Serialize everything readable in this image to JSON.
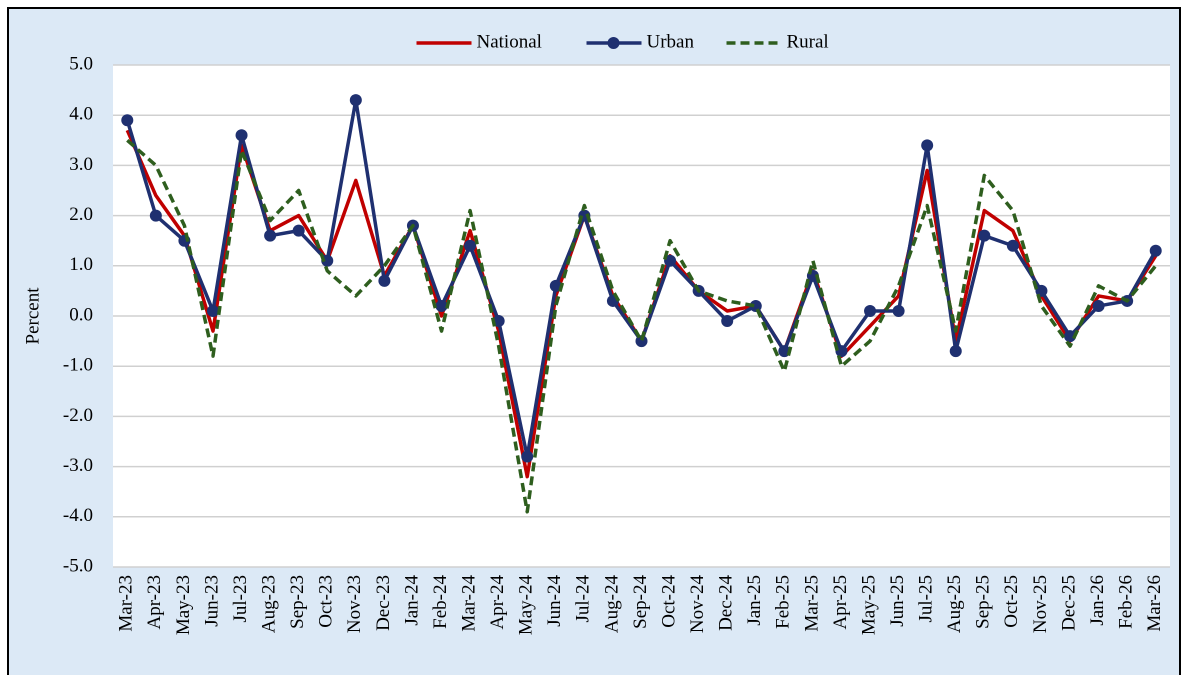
{
  "chart_data": {
    "type": "line",
    "y_label": "Percent",
    "categories": [
      "Mar-23",
      "Apr-23",
      "May-23",
      "Jun-23",
      "Jul-23",
      "Aug-23",
      "Sep-23",
      "Oct-23",
      "Nov-23",
      "Dec-23",
      "Jan-24",
      "Feb-24",
      "Mar-24",
      "Apr-24",
      "May-24",
      "Jun-24",
      "Jul-24",
      "Aug-24",
      "Sep-24",
      "Oct-24",
      "Nov-24",
      "Dec-24",
      "Jan-25",
      "Feb-25",
      "Mar-25",
      "Apr-25",
      "May-25",
      "Jun-25",
      "Jul-25",
      "Aug-25",
      "Sep-25",
      "Oct-25",
      "Nov-25",
      "Dec-25",
      "Jan-26",
      "Feb-26",
      "Mar-26"
    ],
    "series": [
      {
        "name": "National",
        "color": "#c00000",
        "dash": false,
        "markers": false,
        "values": [
          3.7,
          2.4,
          1.6,
          -0.3,
          3.4,
          1.7,
          2.0,
          1.1,
          2.7,
          0.8,
          1.8,
          0.0,
          1.7,
          -0.3,
          -3.2,
          0.4,
          2.0,
          0.4,
          -0.5,
          1.2,
          0.5,
          0.1,
          0.2,
          -0.7,
          0.9,
          -0.8,
          -0.2,
          0.4,
          2.9,
          -0.5,
          2.1,
          1.7,
          0.4,
          -0.5,
          0.4,
          0.3,
          1.2
        ]
      },
      {
        "name": "Urban",
        "color": "#1f3070",
        "dash": false,
        "markers": true,
        "values": [
          3.9,
          2.0,
          1.5,
          0.1,
          3.6,
          1.6,
          1.7,
          1.1,
          4.3,
          0.7,
          1.8,
          0.2,
          1.4,
          -0.1,
          -2.8,
          0.6,
          2.0,
          0.3,
          -0.5,
          1.1,
          0.5,
          -0.1,
          0.2,
          -0.7,
          0.8,
          -0.7,
          0.1,
          0.1,
          3.4,
          -0.7,
          1.6,
          1.4,
          0.5,
          -0.4,
          0.2,
          0.3,
          1.3
        ]
      },
      {
        "name": "Rural",
        "color": "#2e5e1e",
        "dash": true,
        "markers": false,
        "values": [
          3.5,
          3.0,
          1.8,
          -0.8,
          3.3,
          1.9,
          2.5,
          0.9,
          0.4,
          1.0,
          1.8,
          -0.3,
          2.1,
          -0.6,
          -3.9,
          0.2,
          2.2,
          0.5,
          -0.5,
          1.5,
          0.5,
          0.3,
          0.2,
          -1.1,
          1.1,
          -1.0,
          -0.5,
          0.6,
          2.2,
          -0.3,
          2.8,
          2.1,
          0.2,
          -0.6,
          0.6,
          0.3,
          1.0
        ]
      }
    ],
    "ylim": [
      -5,
      5
    ],
    "yticks": [
      {
        "value": -5,
        "label": "-5.0"
      },
      {
        "value": -4,
        "label": "-4.0"
      },
      {
        "value": -3,
        "label": "-3.0"
      },
      {
        "value": -2,
        "label": "-2.0"
      },
      {
        "value": -1,
        "label": "-1.0"
      },
      {
        "value": 0,
        "label": "0.0"
      },
      {
        "value": 1,
        "label": "1.0"
      },
      {
        "value": 2,
        "label": "2.0"
      },
      {
        "value": 3,
        "label": "3.0"
      },
      {
        "value": 4,
        "label": "4.0"
      },
      {
        "value": 5,
        "label": "5.0"
      }
    ],
    "grid": true,
    "legend": "top"
  }
}
